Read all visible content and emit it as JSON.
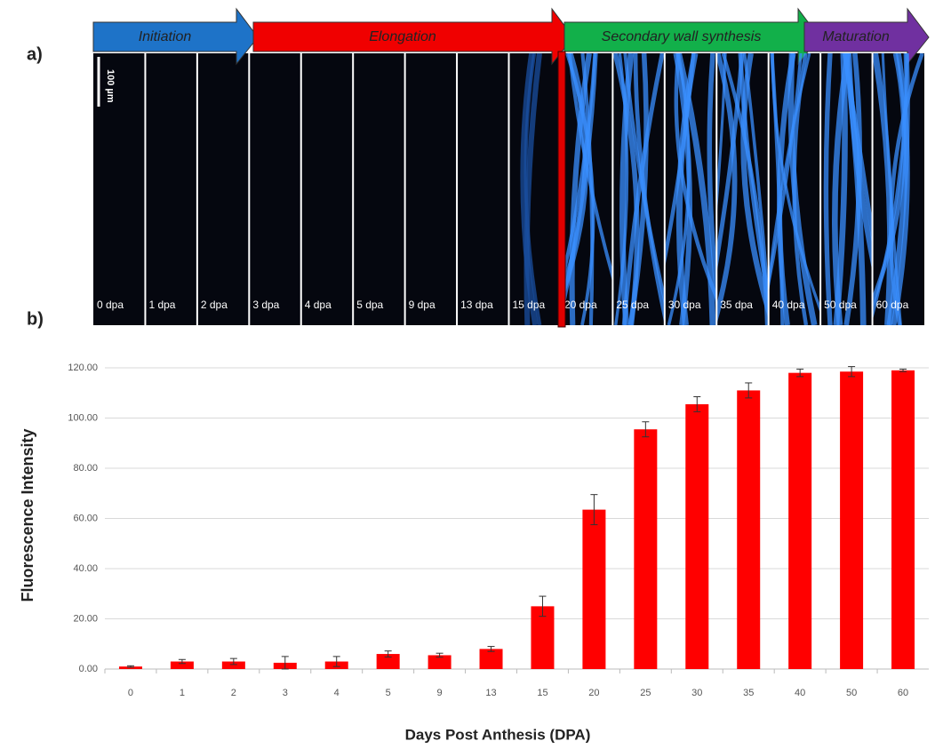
{
  "panel_a": {
    "label": "a)",
    "scale_bar": "100 µm",
    "phases": [
      "Initiation",
      "Elongation",
      "Secondary wall synthesis",
      "Maturation"
    ],
    "images": [
      "0 dpa",
      "1 dpa",
      "2 dpa",
      "3 dpa",
      "4 dpa",
      "5 dpa",
      "9 dpa",
      "13 dpa",
      "15 dpa",
      "20 dpa",
      "25 dpa",
      "30 dpa",
      "35 dpa",
      "40 dpa",
      "50 dpa",
      "60 dpa"
    ]
  },
  "panel_b": {
    "label": "b)"
  },
  "chart_data": {
    "type": "bar",
    "x_label": "Days Post Anthesis (DPA)",
    "y_label": "Fluorescence Intensity",
    "categories": [
      "0",
      "1",
      "2",
      "3",
      "4",
      "5",
      "9",
      "13",
      "15",
      "20",
      "25",
      "30",
      "35",
      "40",
      "50",
      "60"
    ],
    "values": [
      1,
      3,
      3,
      2.5,
      3,
      6,
      5.5,
      8,
      25,
      63.5,
      95.5,
      105.5,
      111,
      118,
      118.5,
      119
    ],
    "errors": [
      0.3,
      0.8,
      1.2,
      2.5,
      2,
      1.2,
      0.8,
      1,
      4,
      6,
      3,
      3,
      3,
      1.5,
      2,
      0.5
    ],
    "color": "#ff0000",
    "ylim": [
      0,
      120
    ],
    "yticks": [
      {
        "value": 0,
        "label": "0.00"
      },
      {
        "value": 20,
        "label": "20.00"
      },
      {
        "value": 40,
        "label": "40.00"
      },
      {
        "value": 60,
        "label": "60.00"
      },
      {
        "value": 80,
        "label": "80.00"
      },
      {
        "value": 100,
        "label": "100.00"
      },
      {
        "value": 120,
        "label": "120.00"
      }
    ],
    "grid": true
  }
}
